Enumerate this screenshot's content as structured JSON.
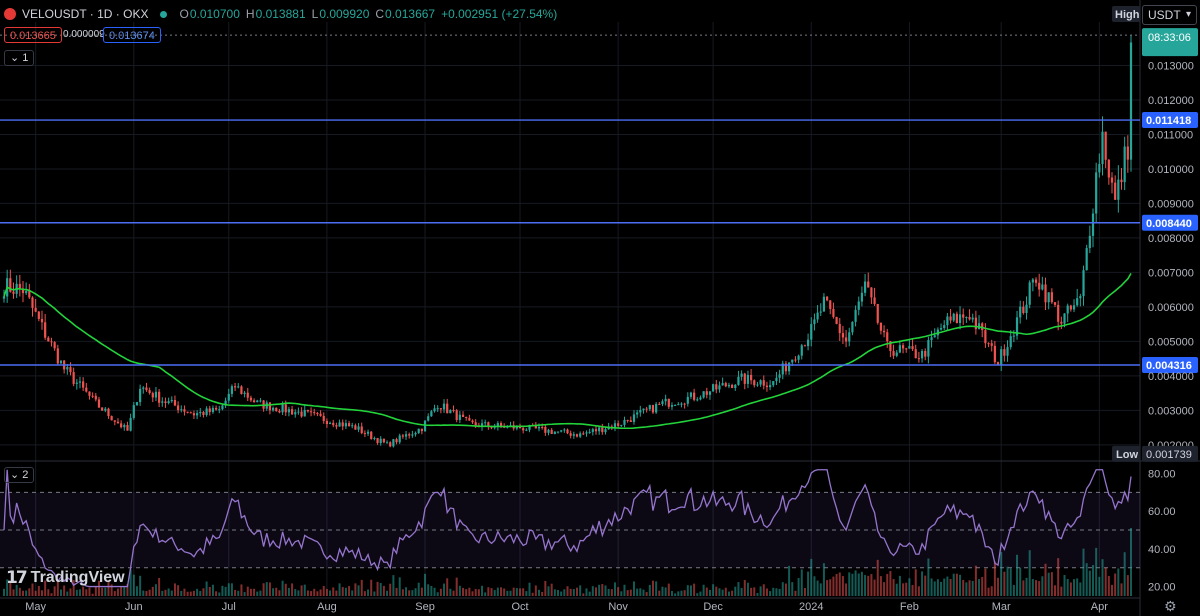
{
  "header": {
    "symbol": "VELOUSDT · 1D · OKX",
    "open_label": "O",
    "open": "0.010700",
    "high_label": "H",
    "high": "0.013881",
    "low_label": "L",
    "low": "0.009920",
    "close_label": "C",
    "close": "0.013667",
    "change": "+0.002951 (+27.54%)",
    "bid": "0.013665",
    "spread": "0.000009",
    "ask": "0.013674"
  },
  "currency": "USDT",
  "pane1_tag": "1",
  "pane2_tag": "2",
  "logo": "TradingView",
  "colors": {
    "up": "#26a69a",
    "down": "#ef5350",
    "ma": "#22d33a",
    "rsi": "#7e57c2",
    "hline": "#3d5afe",
    "bg": "#000000"
  },
  "chart_data": [
    {
      "type": "candlestick",
      "title": "VELOUSDT · 1D · OKX",
      "x_ticks": [
        "May",
        "Jun",
        "Jul",
        "Aug",
        "Sep",
        "Oct",
        "Nov",
        "Dec",
        "2024",
        "Feb",
        "Mar",
        "Apr"
      ],
      "y_ticks": [
        "0.002000",
        "0.003000",
        "0.004000",
        "0.005000",
        "0.006000",
        "0.007000",
        "0.008000",
        "0.009000",
        "0.010000",
        "0.011000",
        "0.012000",
        "0.013000"
      ],
      "ylim": [
        0.00162,
        0.01426
      ],
      "horizontal_lines": [
        {
          "price": 0.011418,
          "label": "0.011418"
        },
        {
          "price": 0.00844,
          "label": "0.008440"
        },
        {
          "price": 0.004316,
          "label": "0.004316"
        }
      ],
      "high_marker": {
        "label": "High",
        "price": 0.013881
      },
      "low_marker": {
        "label": "Low",
        "price": 0.001739,
        "value": "0.001739"
      },
      "countdown": "08:33:06",
      "close_series_key_points": [
        [
          "2023-04-21",
          0.0066
        ],
        [
          "2023-04-27",
          0.0065
        ],
        [
          "2023-05-03",
          0.0054
        ],
        [
          "2023-05-10",
          0.0042
        ],
        [
          "2023-05-20",
          0.0032
        ],
        [
          "2023-05-30",
          0.0024
        ],
        [
          "2023-06-03",
          0.0037
        ],
        [
          "2023-06-10",
          0.0033
        ],
        [
          "2023-06-20",
          0.0029
        ],
        [
          "2023-06-28",
          0.003
        ],
        [
          "2023-07-03",
          0.0037
        ],
        [
          "2023-07-10",
          0.0032
        ],
        [
          "2023-07-25",
          0.0029
        ],
        [
          "2023-08-10",
          0.0025
        ],
        [
          "2023-08-20",
          0.002
        ],
        [
          "2023-08-31",
          0.0025
        ],
        [
          "2023-09-05",
          0.0032
        ],
        [
          "2023-09-15",
          0.0026
        ],
        [
          "2023-10-01",
          0.0025
        ],
        [
          "2023-10-20",
          0.0023
        ],
        [
          "2023-11-01",
          0.0026
        ],
        [
          "2023-11-15",
          0.0032
        ],
        [
          "2023-11-25",
          0.0034
        ],
        [
          "2023-12-10",
          0.0039
        ],
        [
          "2023-12-20",
          0.0038
        ],
        [
          "2024-01-01",
          0.0053
        ],
        [
          "2024-01-05",
          0.0061
        ],
        [
          "2024-01-12",
          0.005
        ],
        [
          "2024-01-18",
          0.0066
        ],
        [
          "2024-01-25",
          0.0048
        ],
        [
          "2024-02-05",
          0.0046
        ],
        [
          "2024-02-12",
          0.0055
        ],
        [
          "2024-02-20",
          0.0058
        ],
        [
          "2024-02-29",
          0.0044
        ],
        [
          "2024-03-08",
          0.006
        ],
        [
          "2024-03-12",
          0.0069
        ],
        [
          "2024-03-20",
          0.0056
        ],
        [
          "2024-03-26",
          0.0062
        ],
        [
          "2024-03-31",
          0.0098
        ],
        [
          "2024-04-02",
          0.011
        ],
        [
          "2024-04-06",
          0.009
        ],
        [
          "2024-04-10",
          0.0107
        ],
        [
          "2024-04-11",
          0.013667
        ]
      ]
    },
    {
      "type": "line",
      "title": "",
      "y_ticks": [
        "20.00",
        "40.00",
        "60.00",
        "80.00"
      ],
      "ylim": [
        15,
        84
      ],
      "levels": [
        70,
        50,
        30
      ]
    },
    {
      "type": "bar",
      "title": ""
    }
  ]
}
